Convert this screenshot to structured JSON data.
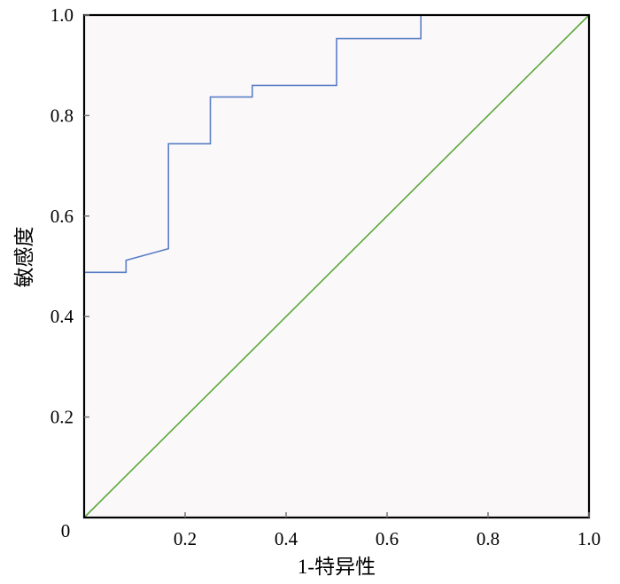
{
  "chart_data": {
    "type": "line",
    "title": "",
    "xlabel": "1-特异性",
    "ylabel": "敏感度",
    "xlim": [
      0,
      1
    ],
    "ylim": [
      0,
      1
    ],
    "origin_label": "0",
    "x_ticks": [
      {
        "value": 0.2,
        "label": "0.2"
      },
      {
        "value": 0.4,
        "label": "0.4"
      },
      {
        "value": 0.6,
        "label": "0.6"
      },
      {
        "value": 0.8,
        "label": "0.8"
      },
      {
        "value": 1.0,
        "label": "1.0"
      }
    ],
    "y_ticks": [
      {
        "value": 0.2,
        "label": "0.2"
      },
      {
        "value": 0.4,
        "label": "0.4"
      },
      {
        "value": 0.6,
        "label": "0.6"
      },
      {
        "value": 0.8,
        "label": "0.8"
      },
      {
        "value": 1.0,
        "label": "1.0"
      }
    ],
    "series": [
      {
        "color": "#5b7fc7",
        "x": [
          0.0,
          0.083,
          0.083,
          0.167,
          0.167,
          0.25,
          0.25,
          0.333,
          0.333,
          0.5,
          0.5,
          0.667,
          0.667
        ],
        "y": [
          0.488,
          0.488,
          0.512,
          0.535,
          0.744,
          0.744,
          0.837,
          0.837,
          0.86,
          0.86,
          0.953,
          0.953,
          1.0
        ]
      },
      {
        "color": "#5aa83c",
        "x": [
          0.0,
          1.0
        ],
        "y": [
          0.0,
          1.0
        ]
      }
    ],
    "plot_background": "#fbf8f9",
    "grid": false,
    "legend": "none"
  }
}
